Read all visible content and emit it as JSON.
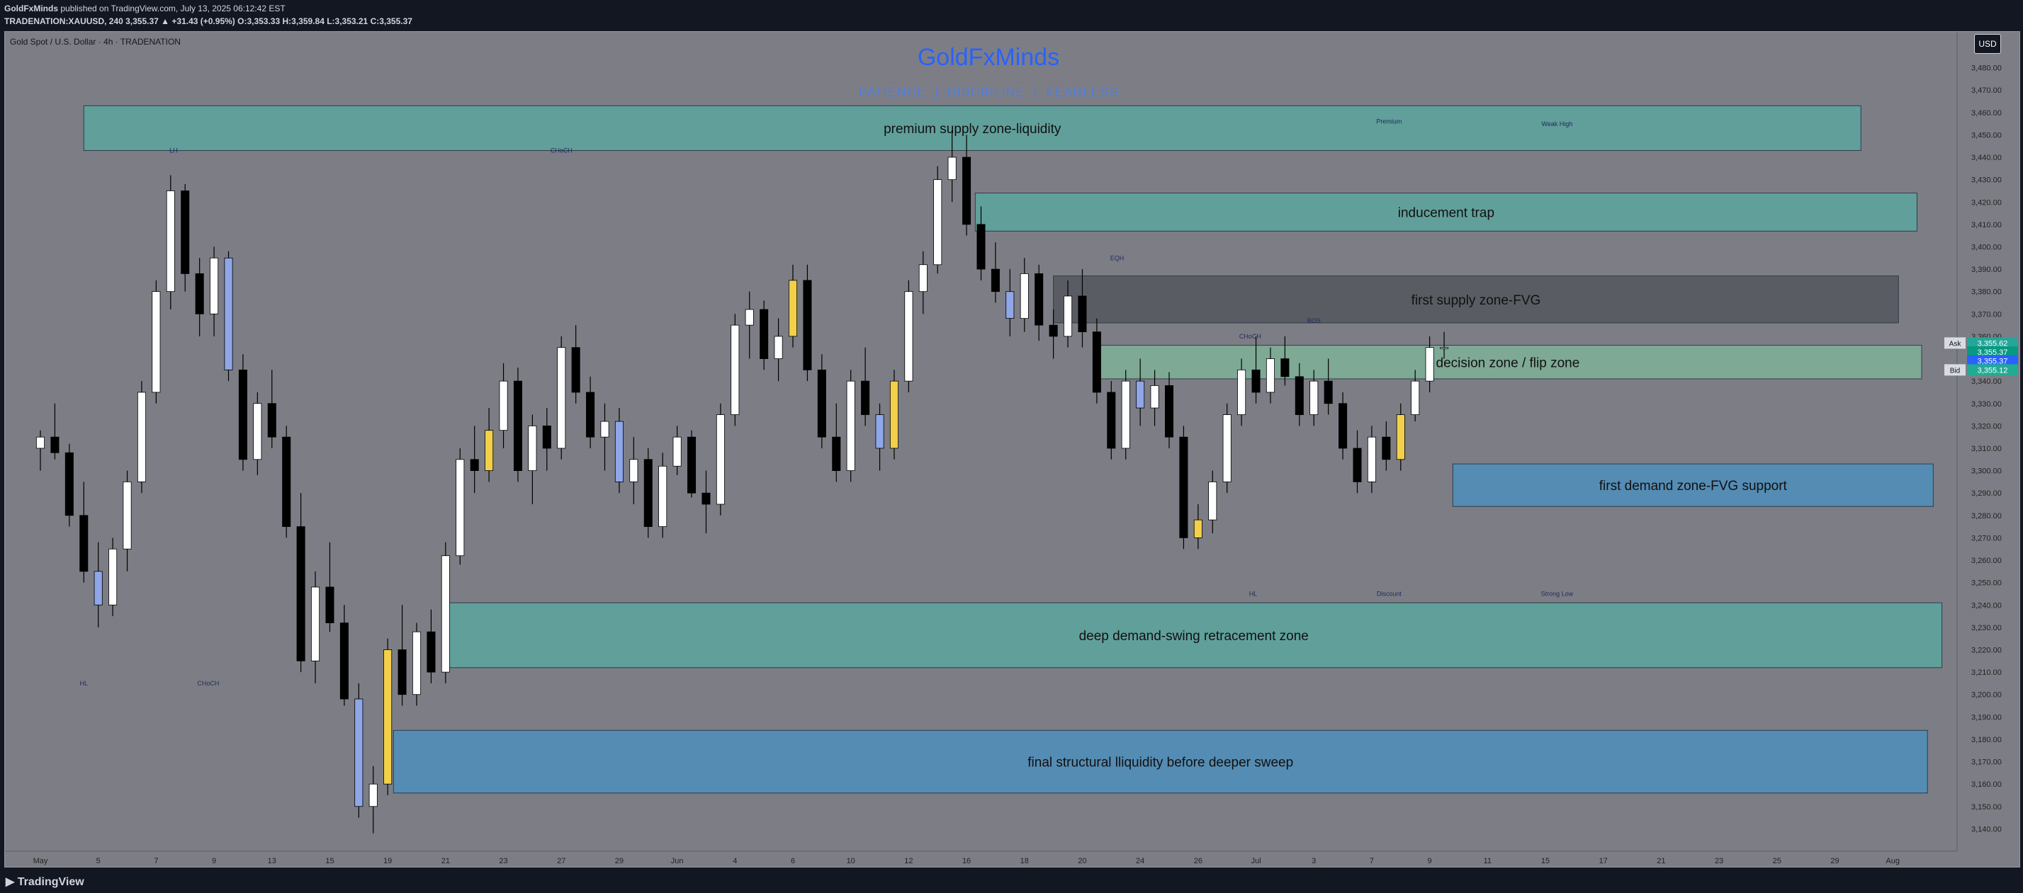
{
  "header": {
    "publisher": "GoldFxMinds",
    "published_text": "published on TradingView.com, July 13, 2025 06:12:42 EST",
    "ticker_line": "TRADENATION:XAUUSD, 240  3,355.37 ▲ +31.43 (+0.95%) O:3,353.33 H:3,359.84 L:3,353.21 C:3,355.37"
  },
  "chart_header": {
    "symbol_title": "Gold Spot / U.S. Dollar · 4h · TRADENATION",
    "brand": "GoldFxMinds",
    "motto": "PATIENCE  |  DISCIPLINE  |  FEARLESS",
    "currency_button": "USD"
  },
  "footer": {
    "logo_text": "TradingView"
  },
  "colors": {
    "background": "#7d7e85",
    "zone_teal": "#5aa8a0",
    "zone_blue": "#4a8fc0",
    "zone_grey": "#505258",
    "candle_up": "#ffffff",
    "candle_down": "#000000",
    "candle_up_yellow": "#f2d04a",
    "candle_down_blue": "#8fa7e8"
  },
  "chart_data": {
    "type": "candlestick",
    "timeframe": "4h",
    "ylim": [
      3130,
      3496
    ],
    "y_ticks": [
      3140,
      3150,
      3160,
      3170,
      3180,
      3190,
      3200,
      3210,
      3220,
      3230,
      3240,
      3250,
      3260,
      3270,
      3280,
      3290,
      3300,
      3310,
      3320,
      3330,
      3340,
      3350,
      3360,
      3370,
      3380,
      3390,
      3400,
      3410,
      3420,
      3430,
      3440,
      3450,
      3460,
      3470,
      3480
    ],
    "x_labels": [
      "May",
      "5",
      "7",
      "9",
      "13",
      "15",
      "19",
      "21",
      "23",
      "27",
      "29",
      "Jun",
      "4",
      "6",
      "10",
      "12",
      "16",
      "18",
      "20",
      "24",
      "26",
      "Jul",
      "3",
      "7",
      "9",
      "11",
      "15",
      "17",
      "21",
      "23",
      "25",
      "29",
      "Aug"
    ],
    "x_range": [
      0,
      32.5
    ],
    "price_labels": [
      {
        "label": "Ask",
        "value": "3,355.62",
        "price": 3357.0,
        "color": "#26a69a"
      },
      {
        "label": "",
        "value": "3,355.37",
        "price": 3353.0,
        "color": "#089981"
      },
      {
        "label": "",
        "value": "3,355.37",
        "price": 3349.0,
        "color": "#2962ff"
      },
      {
        "label": "Bid",
        "value": "3,355.12",
        "price": 3345.0,
        "color": "#22ab94"
      }
    ],
    "zones": [
      {
        "label": "premium supply zone-liquidity",
        "x0": 0.75,
        "x1": 31.45,
        "top": 3463,
        "bottom": 3443,
        "color": "#5aa8a0"
      },
      {
        "label": "inducement trap",
        "x0": 16.15,
        "x1": 32.42,
        "top": 3424,
        "bottom": 3407,
        "color": "#5aa8a0"
      },
      {
        "label": "first supply zone-FVG",
        "x0": 17.5,
        "x1": 32.1,
        "top": 3387,
        "bottom": 3366,
        "color": "#505258"
      },
      {
        "label": "decision zone / flip zone",
        "x0": 18.2,
        "x1": 32.5,
        "top": 3356,
        "bottom": 3341,
        "color": "#7fb59a"
      },
      {
        "label": "first demand zone-FVG support",
        "x0": 24.4,
        "x1": 32.7,
        "top": 3303,
        "bottom": 3284,
        "color": "#4a8fc0"
      },
      {
        "label": "deep demand-swing retracement zone",
        "x0": 7.0,
        "x1": 32.85,
        "top": 3241,
        "bottom": 3212,
        "color": "#5aa8a0"
      },
      {
        "label": "final structural lliquidity before deeper sweep",
        "x0": 6.1,
        "x1": 32.6,
        "top": 3184,
        "bottom": 3156,
        "color": "#4a8fc0"
      }
    ],
    "annotations": [
      {
        "text": "LH",
        "x": 2.3,
        "y": 3442
      },
      {
        "text": "CHoCH",
        "x": 9.0,
        "y": 3442
      },
      {
        "text": "Premium",
        "x": 23.3,
        "y": 3455
      },
      {
        "text": "Weak High",
        "x": 26.2,
        "y": 3454
      },
      {
        "text": "EQH",
        "x": 18.6,
        "y": 3394
      },
      {
        "text": "BOS",
        "x": 22.0,
        "y": 3366
      },
      {
        "text": "CHoCH",
        "x": 20.9,
        "y": 3359
      },
      {
        "text": "Discount",
        "x": 23.3,
        "y": 3244
      },
      {
        "text": "Strong Low",
        "x": 26.2,
        "y": 3244
      },
      {
        "text": "HL",
        "x": 0.75,
        "y": 3204
      },
      {
        "text": "CHoCH",
        "x": 2.9,
        "y": 3204
      },
      {
        "text": "HL",
        "x": 20.95,
        "y": 3244
      }
    ],
    "series": [
      {
        "name": "XAUUSD",
        "ohlc": [
          [
            0.0,
            3310,
            3318,
            3300,
            3315
          ],
          [
            0.25,
            3315,
            3330,
            3305,
            3308
          ],
          [
            0.5,
            3308,
            3312,
            3275,
            3280
          ],
          [
            0.75,
            3280,
            3295,
            3250,
            3255
          ],
          [
            1.0,
            3255,
            3268,
            3230,
            3240
          ],
          [
            1.25,
            3240,
            3270,
            3235,
            3265
          ],
          [
            1.5,
            3265,
            3300,
            3255,
            3295
          ],
          [
            1.75,
            3295,
            3340,
            3290,
            3335
          ],
          [
            2.0,
            3335,
            3385,
            3330,
            3380
          ],
          [
            2.25,
            3380,
            3432,
            3372,
            3425
          ],
          [
            2.5,
            3425,
            3428,
            3380,
            3388
          ],
          [
            2.75,
            3388,
            3395,
            3360,
            3370
          ],
          [
            3.0,
            3370,
            3400,
            3360,
            3395
          ],
          [
            3.25,
            3395,
            3398,
            3340,
            3345
          ],
          [
            3.5,
            3345,
            3352,
            3300,
            3305
          ],
          [
            3.75,
            3305,
            3335,
            3298,
            3330
          ],
          [
            4.0,
            3330,
            3345,
            3310,
            3315
          ],
          [
            4.25,
            3315,
            3320,
            3270,
            3275
          ],
          [
            4.5,
            3275,
            3290,
            3210,
            3215
          ],
          [
            4.75,
            3215,
            3255,
            3205,
            3248
          ],
          [
            5.0,
            3248,
            3268,
            3228,
            3232
          ],
          [
            5.25,
            3232,
            3240,
            3195,
            3198
          ],
          [
            5.5,
            3198,
            3205,
            3145,
            3150
          ],
          [
            5.75,
            3150,
            3168,
            3138,
            3160
          ],
          [
            6.0,
            3160,
            3225,
            3155,
            3220
          ],
          [
            6.25,
            3220,
            3240,
            3195,
            3200
          ],
          [
            6.5,
            3200,
            3232,
            3195,
            3228
          ],
          [
            6.75,
            3228,
            3238,
            3205,
            3210
          ],
          [
            7.0,
            3210,
            3268,
            3205,
            3262
          ],
          [
            7.25,
            3262,
            3310,
            3258,
            3305
          ],
          [
            7.5,
            3305,
            3320,
            3290,
            3300
          ],
          [
            7.75,
            3300,
            3328,
            3295,
            3318
          ],
          [
            8.0,
            3318,
            3348,
            3310,
            3340
          ],
          [
            8.25,
            3340,
            3346,
            3295,
            3300
          ],
          [
            8.5,
            3300,
            3325,
            3285,
            3320
          ],
          [
            8.75,
            3320,
            3328,
            3300,
            3310
          ],
          [
            9.0,
            3310,
            3360,
            3305,
            3355
          ],
          [
            9.25,
            3355,
            3365,
            3330,
            3335
          ],
          [
            9.5,
            3335,
            3342,
            3310,
            3315
          ],
          [
            9.75,
            3315,
            3330,
            3300,
            3322
          ],
          [
            10.0,
            3322,
            3328,
            3290,
            3295
          ],
          [
            10.25,
            3295,
            3315,
            3285,
            3305
          ],
          [
            10.5,
            3305,
            3310,
            3270,
            3275
          ],
          [
            10.75,
            3275,
            3308,
            3270,
            3302
          ],
          [
            11.0,
            3302,
            3320,
            3298,
            3315
          ],
          [
            11.25,
            3315,
            3318,
            3288,
            3290
          ],
          [
            11.5,
            3290,
            3300,
            3272,
            3285
          ],
          [
            11.75,
            3285,
            3330,
            3280,
            3325
          ],
          [
            12.0,
            3325,
            3370,
            3320,
            3365
          ],
          [
            12.25,
            3365,
            3380,
            3350,
            3372
          ],
          [
            12.5,
            3372,
            3376,
            3345,
            3350
          ],
          [
            12.75,
            3350,
            3368,
            3340,
            3360
          ],
          [
            13.0,
            3360,
            3392,
            3355,
            3385
          ],
          [
            13.25,
            3385,
            3392,
            3340,
            3345
          ],
          [
            13.5,
            3345,
            3352,
            3310,
            3315
          ],
          [
            13.75,
            3315,
            3330,
            3295,
            3300
          ],
          [
            14.0,
            3300,
            3345,
            3295,
            3340
          ],
          [
            14.25,
            3340,
            3355,
            3320,
            3325
          ],
          [
            14.5,
            3325,
            3330,
            3300,
            3310
          ],
          [
            14.75,
            3310,
            3345,
            3305,
            3340
          ],
          [
            15.0,
            3340,
            3385,
            3335,
            3380
          ],
          [
            15.25,
            3380,
            3398,
            3370,
            3392
          ],
          [
            15.5,
            3392,
            3436,
            3388,
            3430
          ],
          [
            15.75,
            3430,
            3452,
            3420,
            3440
          ],
          [
            16.0,
            3440,
            3450,
            3405,
            3410
          ],
          [
            16.25,
            3410,
            3418,
            3385,
            3390
          ],
          [
            16.5,
            3390,
            3402,
            3375,
            3380
          ],
          [
            16.75,
            3380,
            3390,
            3360,
            3368
          ],
          [
            17.0,
            3368,
            3395,
            3362,
            3388
          ],
          [
            17.25,
            3388,
            3392,
            3358,
            3365
          ],
          [
            17.5,
            3365,
            3372,
            3350,
            3360
          ],
          [
            17.75,
            3360,
            3385,
            3355,
            3378
          ],
          [
            18.0,
            3378,
            3390,
            3355,
            3362
          ],
          [
            18.25,
            3362,
            3368,
            3330,
            3335
          ],
          [
            18.5,
            3335,
            3340,
            3305,
            3310
          ],
          [
            18.75,
            3310,
            3345,
            3305,
            3340
          ],
          [
            19.0,
            3340,
            3350,
            3320,
            3328
          ],
          [
            19.25,
            3328,
            3345,
            3320,
            3338
          ],
          [
            19.5,
            3338,
            3344,
            3310,
            3315
          ],
          [
            19.75,
            3315,
            3320,
            3265,
            3270
          ],
          [
            20.0,
            3270,
            3285,
            3265,
            3278
          ],
          [
            20.25,
            3278,
            3300,
            3272,
            3295
          ],
          [
            20.5,
            3295,
            3330,
            3290,
            3325
          ],
          [
            20.75,
            3325,
            3350,
            3320,
            3345
          ],
          [
            21.0,
            3345,
            3360,
            3330,
            3335
          ],
          [
            21.25,
            3335,
            3355,
            3330,
            3350
          ],
          [
            21.5,
            3350,
            3360,
            3338,
            3342
          ],
          [
            21.75,
            3342,
            3348,
            3320,
            3325
          ],
          [
            22.0,
            3325,
            3345,
            3320,
            3340
          ],
          [
            22.25,
            3340,
            3350,
            3325,
            3330
          ],
          [
            22.5,
            3330,
            3335,
            3305,
            3310
          ],
          [
            22.75,
            3310,
            3318,
            3290,
            3295
          ],
          [
            23.0,
            3295,
            3320,
            3290,
            3315
          ],
          [
            23.25,
            3315,
            3322,
            3300,
            3305
          ],
          [
            23.5,
            3305,
            3330,
            3300,
            3325
          ],
          [
            23.75,
            3325,
            3345,
            3322,
            3340
          ],
          [
            24.0,
            3340,
            3360,
            3335,
            3355
          ],
          [
            24.25,
            3355,
            3362,
            3350,
            3355
          ]
        ]
      }
    ]
  }
}
